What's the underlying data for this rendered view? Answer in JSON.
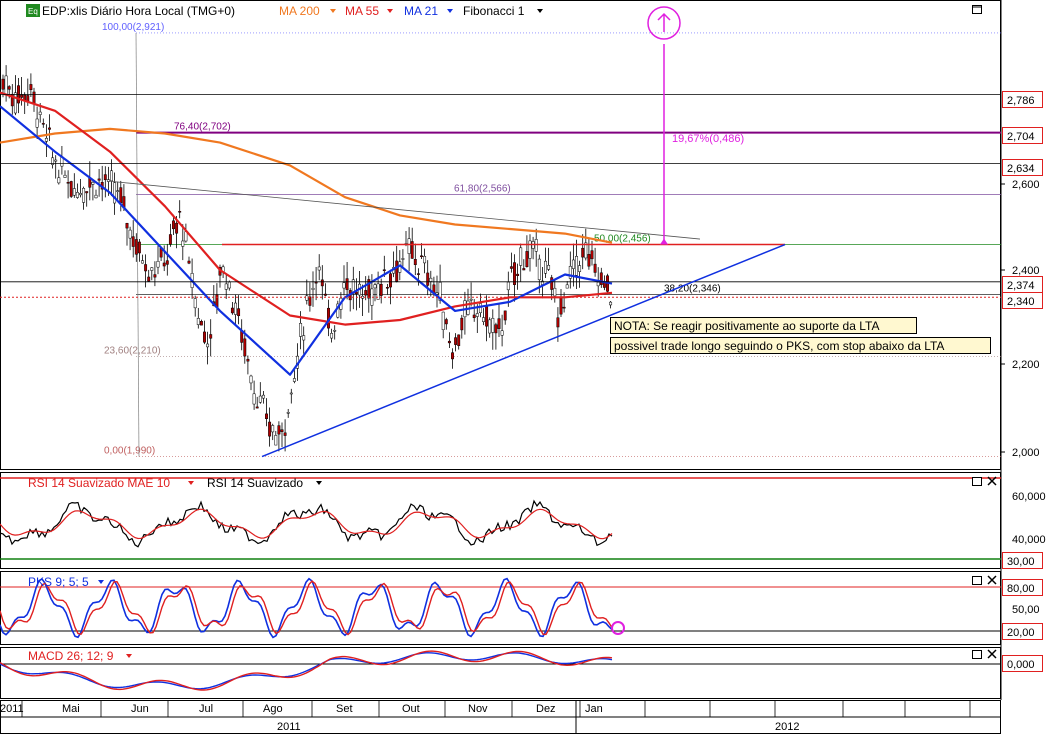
{
  "header": {
    "badge": "Eq",
    "symbol": "EDP:xlis Diário Hora Local (TMG+0)",
    "ma200": "MA 200",
    "ma55": "MA 55",
    "ma21": "MA 21",
    "fib": "Fibonacci 1"
  },
  "colors": {
    "ma200": "#f07820",
    "ma55": "#e02020",
    "ma21": "#1030e0",
    "candle_up": "#ffffff",
    "candle_down": "#b00000",
    "trendline": "#1030e0",
    "fib_grey": "#808080",
    "target": "#e020e0",
    "note_bg": "#fff8d0"
  },
  "chart_data": [
    {
      "type": "candlestick",
      "title": "EDP:xlis Diário Hora Local (TMG+0)",
      "y_ticks": [
        "2,600",
        "2,400",
        "2,200",
        "2,000"
      ],
      "ylim": [
        1.98,
        2.95
      ],
      "price_labels": [
        "2,786",
        "2,704",
        "2,634",
        "2,374",
        "2,340"
      ],
      "fibonacci": [
        {
          "label": "100,00(2,921)",
          "value": 2.921
        },
        {
          "label": "76,40(2,702)",
          "value": 2.702
        },
        {
          "label": "61,80(2,566)",
          "value": 2.566
        },
        {
          "label": "50,00(2,456)",
          "value": 2.456
        },
        {
          "label": "38,20(2,346)",
          "value": 2.346
        },
        {
          "label": "23,60(2,210)",
          "value": 2.21
        },
        {
          "label": "0,00(1,990)",
          "value": 1.99
        }
      ],
      "target_label": "19,67%(0,486)",
      "note_lines": [
        "NOTA: Se reagir positivamente ao suporte da LTA",
        "possivel trade longo seguindo o PKS, com stop abaixo da LTA"
      ],
      "series": [
        {
          "name": "MA 200",
          "values": [
            2.68,
            2.7,
            2.71,
            2.7,
            2.68,
            2.63,
            2.56,
            2.52,
            2.5,
            2.49,
            2.48,
            2.46
          ]
        },
        {
          "name": "MA 55",
          "values": [
            2.79,
            2.75,
            2.66,
            2.54,
            2.4,
            2.3,
            2.28,
            2.29,
            2.32,
            2.34,
            2.34,
            2.35
          ]
        },
        {
          "name": "MA 21",
          "values": [
            2.76,
            2.66,
            2.57,
            2.44,
            2.31,
            2.17,
            2.34,
            2.41,
            2.31,
            2.33,
            2.39,
            2.37
          ]
        }
      ]
    },
    {
      "type": "line",
      "title": "RSI 14 Suavizado MAE 10",
      "series_label": "RSI 14 Suavizado",
      "y_ticks": [
        "60,000",
        "40,000"
      ],
      "levels": [
        "30,00"
      ],
      "ylim": [
        25,
        70
      ]
    },
    {
      "type": "line",
      "title": "PKS 9; 5; 5",
      "y_ticks": [
        "50,00"
      ],
      "levels": [
        "80,00",
        "20,00"
      ],
      "ylim": [
        0,
        100
      ]
    },
    {
      "type": "line",
      "title": "MACD 26; 12; 9",
      "levels": [
        "0,000"
      ],
      "ylim": [
        -0.12,
        0.06
      ]
    }
  ],
  "x_axis": {
    "months": [
      "2011",
      "Mai",
      "Jun",
      "Jul",
      "Ago",
      "Set",
      "Out",
      "Nov",
      "Dez",
      "Jan"
    ],
    "years": [
      "2011",
      "2012"
    ]
  }
}
